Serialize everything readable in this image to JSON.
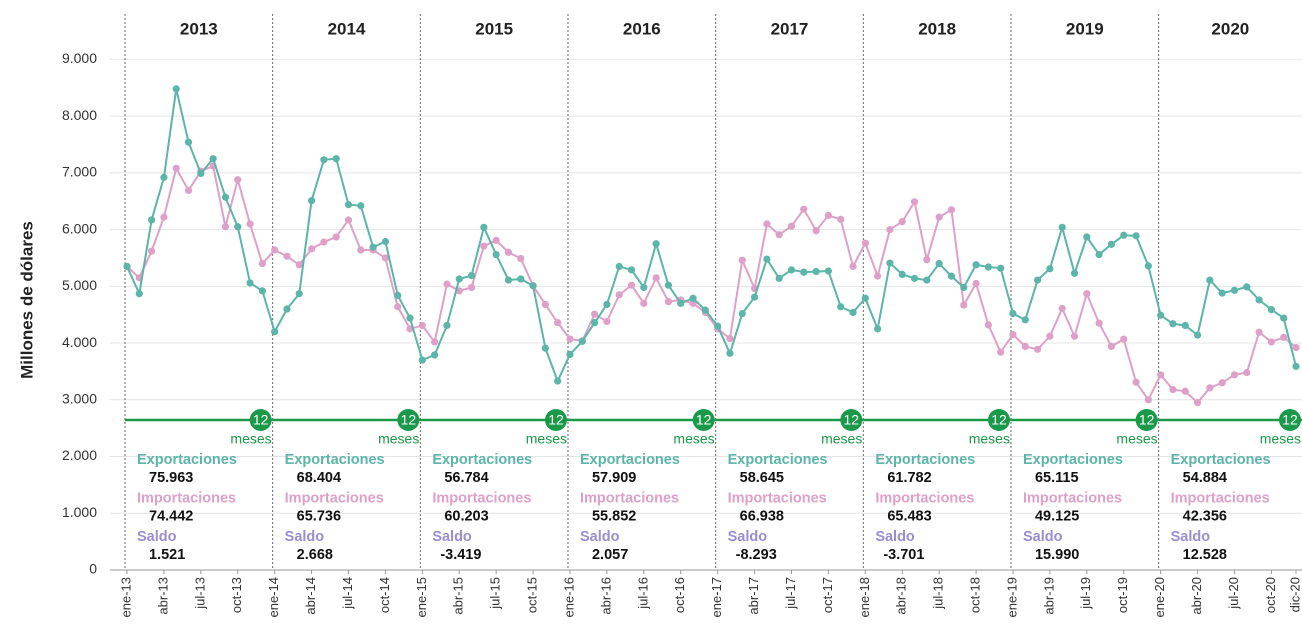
{
  "chart_data": {
    "type": "line",
    "y_label": "Millones de dólares",
    "ylim": [
      0,
      9800
    ],
    "yticks": [
      0,
      {
        "value": 1000,
        "label": "1.000"
      },
      {
        "value": 2000,
        "label": "2.000"
      },
      {
        "value": 3000,
        "label": "3.000"
      },
      {
        "value": 4000,
        "label": "4.000"
      },
      {
        "value": 5000,
        "label": "5.000"
      },
      {
        "value": 6000,
        "label": "6.000"
      },
      {
        "value": 7000,
        "label": "7.000"
      },
      {
        "value": 8000,
        "label": "8.000"
      },
      {
        "value": 9000,
        "label": "9.000"
      }
    ],
    "grid": true,
    "categories": [
      "ene-13",
      null,
      null,
      "abr-13",
      null,
      null,
      "jul-13",
      null,
      null,
      "oct-13",
      null,
      null,
      "ene-14",
      null,
      null,
      "abr-14",
      null,
      null,
      "jul-14",
      null,
      null,
      "oct-14",
      null,
      null,
      "ene-15",
      null,
      null,
      "abr-15",
      null,
      null,
      "jul-15",
      null,
      null,
      "oct-15",
      null,
      null,
      "ene-16",
      null,
      null,
      "abr-16",
      null,
      null,
      "jul-16",
      null,
      null,
      "oct-16",
      null,
      null,
      "ene-17",
      null,
      null,
      "abr-17",
      null,
      null,
      "jul-17",
      null,
      null,
      "oct-17",
      null,
      null,
      "ene-18",
      null,
      null,
      "abr-18",
      null,
      null,
      "jul-18",
      null,
      null,
      "oct-18",
      null,
      null,
      "ene-19",
      null,
      null,
      "abr-19",
      null,
      null,
      "jul-19",
      null,
      null,
      "oct-19",
      null,
      null,
      "ene-20",
      null,
      null,
      "abr-20",
      null,
      null,
      "jul-20",
      null,
      null,
      "oct-20",
      null,
      "dic-20"
    ],
    "series": [
      {
        "name": "Exportaciones",
        "color": "#5bb5a8",
        "values": [
          5350,
          4870,
          6170,
          6920,
          8480,
          7540,
          6990,
          7250,
          6570,
          6050,
          5060,
          4920,
          4200,
          4600,
          4870,
          6510,
          7230,
          7250,
          6440,
          6420,
          5690,
          5790,
          4840,
          4440,
          3700,
          3790,
          4310,
          5130,
          5190,
          6040,
          5560,
          5110,
          5130,
          5010,
          3910,
          3330,
          3800,
          4030,
          4360,
          4680,
          5350,
          5290,
          4980,
          5750,
          5020,
          4700,
          4790,
          4580,
          4300,
          3820,
          4520,
          4810,
          5480,
          5140,
          5290,
          5250,
          5260,
          5270,
          4640,
          4540,
          4790,
          4250,
          5410,
          5210,
          5140,
          5110,
          5400,
          5180,
          4980,
          5380,
          5340,
          5320,
          4520,
          4410,
          5110,
          5310,
          6040,
          5230,
          5870,
          5560,
          5740,
          5900,
          5890,
          5360,
          4490,
          4340,
          4310,
          4140,
          5110,
          4880,
          4930,
          4990,
          4760,
          4590,
          4440,
          3590
        ]
      },
      {
        "name": "Importaciones",
        "color": "#dfa0c8",
        "values": [
          5350,
          5150,
          5620,
          6220,
          7080,
          6690,
          7030,
          7120,
          6050,
          6880,
          6100,
          5400,
          5640,
          5530,
          5380,
          5660,
          5780,
          5870,
          6170,
          5640,
          5640,
          5500,
          4640,
          4250,
          4310,
          4020,
          5040,
          4920,
          4980,
          5710,
          5810,
          5600,
          5490,
          5010,
          4680,
          4360,
          4070,
          4040,
          4510,
          4380,
          4850,
          5020,
          4700,
          5150,
          4730,
          4760,
          4700,
          4540,
          4250,
          4080,
          5460,
          4960,
          6100,
          5910,
          6060,
          6360,
          5980,
          6250,
          6180,
          5350,
          5760,
          5180,
          6000,
          6140,
          6490,
          5470,
          6220,
          6350,
          4670,
          5050,
          4320,
          3840,
          4150,
          3940,
          3890,
          4120,
          4610,
          4120,
          4870,
          4350,
          3940,
          4070,
          3310,
          3000,
          3440,
          3180,
          3150,
          2950,
          3210,
          3300,
          3440,
          3480,
          4190,
          4020,
          4100,
          3920
        ]
      }
    ],
    "period_badge": "12",
    "period_unit": "meses",
    "period_color": "#1a9a48",
    "annual": {
      "categories": [
        "2013",
        "2014",
        "2015",
        "2016",
        "2017",
        "2018",
        "2019",
        "2020"
      ],
      "series": [
        {
          "name": "Exportaciones",
          "color": "#5bb5a8",
          "values": [
            75963,
            68404,
            56784,
            57909,
            58645,
            61782,
            65115,
            54884
          ],
          "value_labels": [
            "75.963",
            "68.404",
            "56.784",
            "57.909",
            "58.645",
            "61.782",
            "65.115",
            "54.884"
          ]
        },
        {
          "name": "Importaciones",
          "color": "#dfa0c8",
          "values": [
            74442,
            65736,
            60203,
            55852,
            66938,
            65483,
            49125,
            42356
          ],
          "value_labels": [
            "74.442",
            "65.736",
            "60.203",
            "55.852",
            "66.938",
            "65.483",
            "49.125",
            "42.356"
          ]
        },
        {
          "name": "Saldo",
          "color": "#9b8dd0",
          "values": [
            1521,
            2668,
            -3419,
            2057,
            -8293,
            -3701,
            15990,
            12528
          ],
          "value_labels": [
            "1.521",
            "2.668",
            "-3.419",
            "2.057",
            "-8.293",
            "-3.701",
            "15.990",
            "12.528"
          ]
        }
      ]
    }
  }
}
